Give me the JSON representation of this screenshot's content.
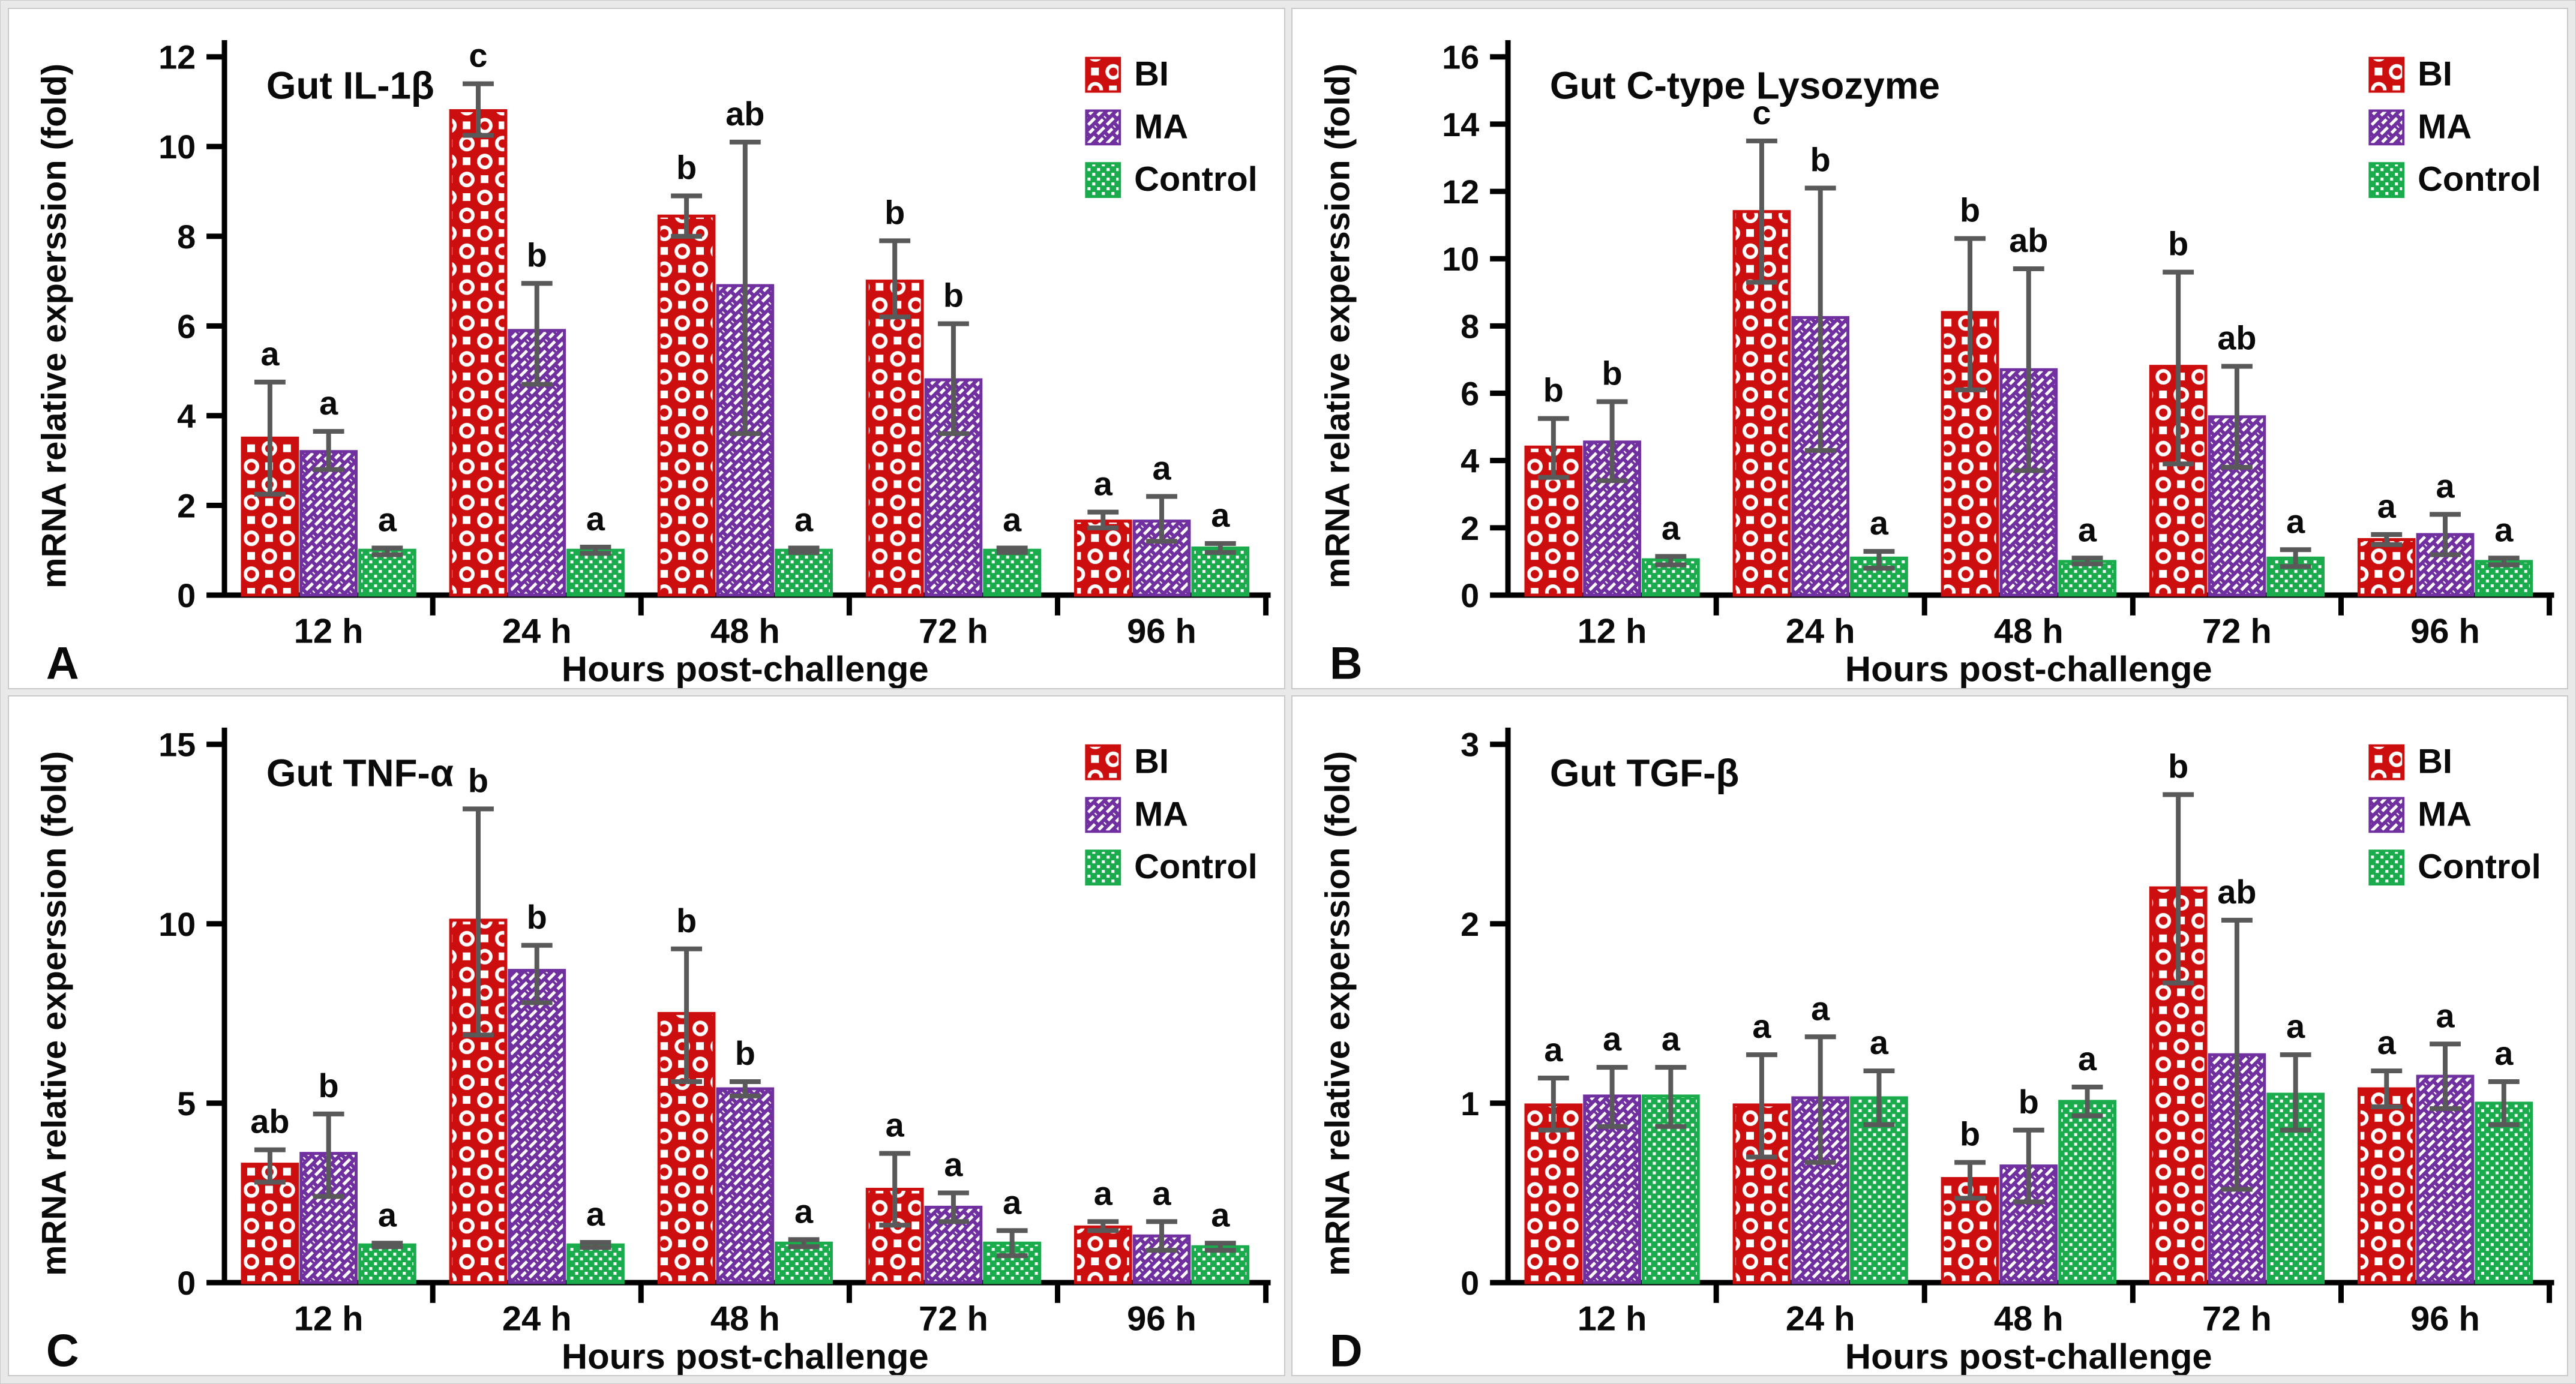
{
  "figure": {
    "xlabel": "Hours post-challenge",
    "ylabel": "mRNA relative experssion (fold)"
  },
  "x_categories": [
    "12 h",
    "24 h",
    "48 h",
    "72 h",
    "96 h"
  ],
  "legend": {
    "position": "top-right",
    "items": [
      {
        "label": "BI",
        "series": "BI"
      },
      {
        "label": "MA",
        "series": "MA"
      },
      {
        "label": "Control",
        "series": "Control"
      }
    ]
  },
  "colors": {
    "BI": "#cc0e0e",
    "MA": "#7030a0",
    "Control": "#1aab4c",
    "error_bar": "#595959",
    "axis": "#000000",
    "panel_bg": "#ffffff",
    "page_bg": "#e9e9e9"
  },
  "chart_data": [
    {
      "type": "bar",
      "panel_letter": "A",
      "title": "Gut IL-1β",
      "xlabel": "Hours post-challenge",
      "ylabel": "mRNA relative experssion (fold)",
      "categories": [
        "12 h",
        "24 h",
        "48 h",
        "72 h",
        "96 h"
      ],
      "ylim": [
        0,
        12
      ],
      "yticks": [
        0,
        2,
        4,
        6,
        8,
        10,
        12
      ],
      "grid": false,
      "legend_position": "top-right",
      "series": [
        {
          "name": "BI",
          "values": [
            3.5,
            10.8,
            8.45,
            7.0,
            1.65
          ],
          "err_lo": [
            2.25,
            10.25,
            8.0,
            6.2,
            1.5
          ],
          "err_hi": [
            4.75,
            11.4,
            8.9,
            7.9,
            1.85
          ],
          "letters": [
            "a",
            "c",
            "b",
            "b",
            "a"
          ]
        },
        {
          "name": "MA",
          "values": [
            3.2,
            5.9,
            6.9,
            4.8,
            1.65
          ],
          "err_lo": [
            2.8,
            4.7,
            3.6,
            3.6,
            1.2
          ],
          "err_hi": [
            3.65,
            6.95,
            10.1,
            6.05,
            2.2
          ],
          "letters": [
            "a",
            "b",
            "ab",
            "b",
            "a"
          ]
        },
        {
          "name": "Control",
          "values": [
            1.0,
            1.0,
            1.0,
            1.0,
            1.05
          ],
          "err_lo": [
            0.9,
            0.93,
            0.95,
            0.95,
            0.95
          ],
          "err_hi": [
            1.05,
            1.07,
            1.05,
            1.05,
            1.15
          ],
          "letters": [
            "a",
            "a",
            "a",
            "a",
            "a"
          ]
        }
      ]
    },
    {
      "type": "bar",
      "panel_letter": "B",
      "title": "Gut C-type Lysozyme",
      "xlabel": "Hours post-challenge",
      "ylabel": "mRNA relative experssion (fold)",
      "categories": [
        "12 h",
        "24 h",
        "48 h",
        "72 h",
        "96 h"
      ],
      "ylim": [
        0,
        16
      ],
      "yticks": [
        0,
        2,
        4,
        6,
        8,
        10,
        12,
        14,
        16
      ],
      "grid": false,
      "legend_position": "top-right",
      "series": [
        {
          "name": "BI",
          "values": [
            4.4,
            11.4,
            8.4,
            6.8,
            1.65
          ],
          "err_lo": [
            3.5,
            9.3,
            6.1,
            3.9,
            1.5
          ],
          "err_hi": [
            5.25,
            13.5,
            10.6,
            9.6,
            1.8
          ],
          "letters": [
            "b",
            "c",
            "b",
            "b",
            "a"
          ]
        },
        {
          "name": "MA",
          "values": [
            4.55,
            8.25,
            6.7,
            5.3,
            1.8
          ],
          "err_lo": [
            3.4,
            4.3,
            3.7,
            3.8,
            1.2
          ],
          "err_hi": [
            5.75,
            12.1,
            9.7,
            6.8,
            2.4
          ],
          "letters": [
            "b",
            "b",
            "ab",
            "ab",
            "a"
          ]
        },
        {
          "name": "Control",
          "values": [
            1.05,
            1.1,
            1.0,
            1.1,
            1.0
          ],
          "err_lo": [
            0.9,
            0.8,
            0.93,
            0.85,
            0.9
          ],
          "err_hi": [
            1.15,
            1.3,
            1.1,
            1.35,
            1.1
          ],
          "letters": [
            "a",
            "a",
            "a",
            "a",
            "a"
          ]
        }
      ]
    },
    {
      "type": "bar",
      "panel_letter": "C",
      "title": "Gut TNF-α",
      "xlabel": "Hours post-challenge",
      "ylabel": "mRNA relative experssion (fold)",
      "categories": [
        "12 h",
        "24 h",
        "48 h",
        "72 h",
        "96 h"
      ],
      "ylim": [
        0,
        15
      ],
      "yticks": [
        0,
        5,
        10,
        15
      ],
      "grid": false,
      "legend_position": "top-right",
      "series": [
        {
          "name": "BI",
          "values": [
            3.3,
            10.1,
            7.5,
            2.6,
            1.55
          ],
          "err_lo": [
            2.8,
            6.9,
            5.6,
            1.6,
            1.45
          ],
          "err_hi": [
            3.7,
            13.2,
            9.3,
            3.6,
            1.7
          ],
          "letters": [
            "ab",
            "b",
            "b",
            "a",
            "a"
          ]
        },
        {
          "name": "MA",
          "values": [
            3.6,
            8.7,
            5.4,
            2.1,
            1.3
          ],
          "err_lo": [
            2.4,
            7.8,
            5.2,
            1.7,
            0.9
          ],
          "err_hi": [
            4.7,
            9.4,
            5.6,
            2.5,
            1.7
          ],
          "letters": [
            "b",
            "b",
            "b",
            "a",
            "a"
          ]
        },
        {
          "name": "Control",
          "values": [
            1.05,
            1.05,
            1.1,
            1.1,
            1.0
          ],
          "err_lo": [
            1.0,
            0.98,
            1.0,
            0.75,
            0.9
          ],
          "err_hi": [
            1.1,
            1.12,
            1.2,
            1.45,
            1.1
          ],
          "letters": [
            "a",
            "a",
            "a",
            "a",
            "a"
          ]
        }
      ]
    },
    {
      "type": "bar",
      "panel_letter": "D",
      "title": "Gut TGF-β",
      "xlabel": "Hours post-challenge",
      "ylabel": "mRNA relative experssion (fold)",
      "categories": [
        "12 h",
        "24 h",
        "48 h",
        "72 h",
        "96 h"
      ],
      "ylim": [
        0,
        3
      ],
      "yticks": [
        0,
        1,
        2,
        3
      ],
      "grid": false,
      "legend_position": "top-right",
      "series": [
        {
          "name": "BI",
          "values": [
            0.99,
            0.99,
            0.58,
            2.2,
            1.08
          ],
          "err_lo": [
            0.85,
            0.7,
            0.47,
            1.67,
            0.98
          ],
          "err_hi": [
            1.14,
            1.27,
            0.67,
            2.72,
            1.18
          ],
          "letters": [
            "a",
            "a",
            "b",
            "b",
            "a"
          ]
        },
        {
          "name": "MA",
          "values": [
            1.04,
            1.03,
            0.65,
            1.27,
            1.15
          ],
          "err_lo": [
            0.87,
            0.67,
            0.45,
            0.52,
            0.97
          ],
          "err_hi": [
            1.2,
            1.37,
            0.85,
            2.02,
            1.33
          ],
          "letters": [
            "a",
            "a",
            "b",
            "ab",
            "a"
          ]
        },
        {
          "name": "Control",
          "values": [
            1.04,
            1.03,
            1.01,
            1.05,
            1.0
          ],
          "err_lo": [
            0.87,
            0.88,
            0.93,
            0.85,
            0.88
          ],
          "err_hi": [
            1.2,
            1.18,
            1.09,
            1.27,
            1.12
          ],
          "letters": [
            "a",
            "a",
            "a",
            "a",
            "a"
          ]
        }
      ]
    }
  ]
}
